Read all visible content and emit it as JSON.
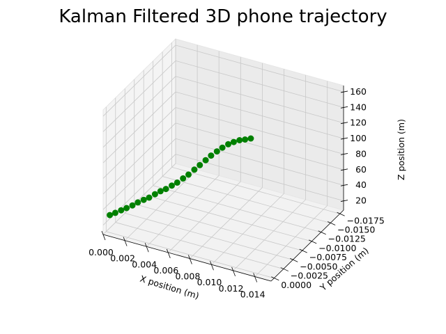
{
  "chart_data": {
    "type": "scatter",
    "title": "Kalman Filtered 3D phone trajectory",
    "xlabel": "X position (m)",
    "ylabel": "Y position (m)",
    "zlabel": "Z position (m)",
    "x_ticks": [
      "0.000",
      "0.002",
      "0.004",
      "0.006",
      "0.008",
      "0.010",
      "0.012",
      "0.014"
    ],
    "y_ticks": [
      "0.0000",
      "−0.0025",
      "−0.0050",
      "−0.0075",
      "−0.0100",
      "−0.0125",
      "−0.0150",
      "−0.0175"
    ],
    "z_ticks": [
      "20",
      "40",
      "60",
      "80",
      "100",
      "120",
      "140",
      "160"
    ],
    "xlim": [
      0.0,
      0.0155
    ],
    "ylim": [
      -0.0185,
      0.0008
    ],
    "zlim": [
      8,
      168
    ],
    "grid": true,
    "marker_color": "#008000",
    "series": [
      {
        "points": [
          {
            "x": 0.0002,
            "y": -0.0004,
            "z": 28
          },
          {
            "x": 0.0006,
            "y": -0.0007,
            "z": 31
          },
          {
            "x": 0.001,
            "y": -0.0011,
            "z": 34
          },
          {
            "x": 0.0014,
            "y": -0.0014,
            "z": 37
          },
          {
            "x": 0.0018,
            "y": -0.0018,
            "z": 40
          },
          {
            "x": 0.0022,
            "y": -0.0021,
            "z": 44
          },
          {
            "x": 0.0026,
            "y": -0.0025,
            "z": 47
          },
          {
            "x": 0.003,
            "y": -0.0028,
            "z": 50
          },
          {
            "x": 0.0034,
            "y": -0.0032,
            "z": 54
          },
          {
            "x": 0.0038,
            "y": -0.0035,
            "z": 58
          },
          {
            "x": 0.0042,
            "y": -0.0038,
            "z": 61
          },
          {
            "x": 0.0046,
            "y": -0.0042,
            "z": 65
          },
          {
            "x": 0.005,
            "y": -0.0045,
            "z": 69
          },
          {
            "x": 0.0054,
            "y": -0.0049,
            "z": 74
          },
          {
            "x": 0.0058,
            "y": -0.0052,
            "z": 79
          },
          {
            "x": 0.0062,
            "y": -0.0056,
            "z": 85
          },
          {
            "x": 0.0066,
            "y": -0.0059,
            "z": 91
          },
          {
            "x": 0.007,
            "y": -0.0063,
            "z": 97
          },
          {
            "x": 0.0074,
            "y": -0.0066,
            "z": 103
          },
          {
            "x": 0.0078,
            "y": -0.007,
            "z": 108
          },
          {
            "x": 0.0082,
            "y": -0.0073,
            "z": 113
          },
          {
            "x": 0.0086,
            "y": -0.0077,
            "z": 117
          },
          {
            "x": 0.009,
            "y": -0.008,
            "z": 120
          },
          {
            "x": 0.0094,
            "y": -0.0084,
            "z": 122
          },
          {
            "x": 0.0098,
            "y": -0.0087,
            "z": 123
          },
          {
            "x": 0.0102,
            "y": -0.0091,
            "z": 124
          }
        ]
      }
    ]
  }
}
